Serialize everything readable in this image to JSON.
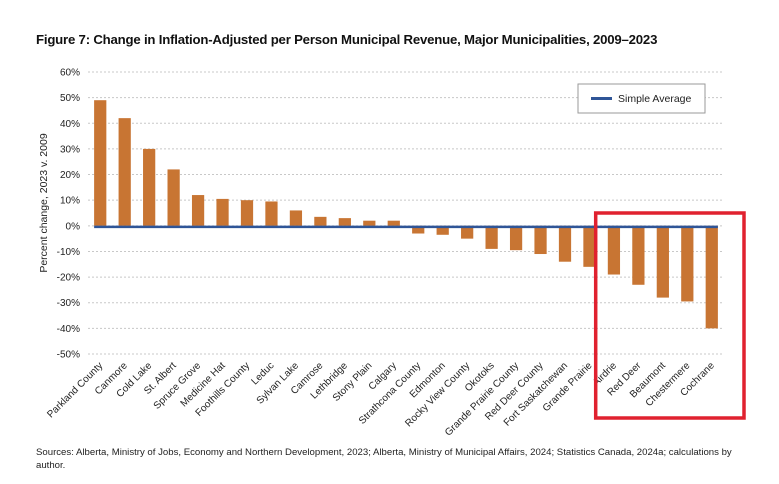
{
  "title": "Figure 7: Change in Inflation-Adjusted per Person Municipal Revenue, Major Municipalities, 2009–2023",
  "source": "Sources: Alberta, Ministry of Jobs, Economy and Northern Development, 2023; Alberta, Ministry of Municipal Affairs, 2024; Statistics Canada, 2024a; calculations by author.",
  "colors": {
    "bar": "#c87533",
    "average_line": "#2f5597",
    "highlight": "#e0212f",
    "grid": "#c8c8c8"
  },
  "chart_data": {
    "type": "bar",
    "title": "Figure 7: Change in Inflation-Adjusted per Person Municipal Revenue, Major Municipalities, 2009–2023",
    "xlabel": "",
    "ylabel": "Percent change, 2023 v. 2009",
    "ylim": [
      -50,
      60
    ],
    "yticks": [
      60,
      50,
      40,
      30,
      20,
      10,
      0,
      -10,
      -20,
      -30,
      -40,
      -50
    ],
    "ytick_labels": [
      "60%",
      "50%",
      "40%",
      "30%",
      "20%",
      "10%",
      "0%",
      "-10%",
      "-20%",
      "-30%",
      "-40%",
      "-50%"
    ],
    "grid": true,
    "categories": [
      "Parkland County",
      "Canmore",
      "Cold Lake",
      "St. Albert",
      "Spruce Grove",
      "Medicine Hat",
      "Foothills County",
      "Leduc",
      "Sylvan Lake",
      "Camrose",
      "Lethbridge",
      "Stony Plain",
      "Calgary",
      "Strathcona County",
      "Edmonton",
      "Rocky View County",
      "Okotoks",
      "Grande Prairie County",
      "Red Deer County",
      "Fort Saskatchewan",
      "Grande Prairie",
      "Airdrie",
      "Red Deer",
      "Beaumont",
      "Chestermere",
      "Cochrane"
    ],
    "series": [
      {
        "name": "Percent change",
        "values": [
          49,
          42,
          30,
          22,
          12,
          10.5,
          10,
          9.5,
          6,
          3.5,
          3,
          2,
          2,
          -3,
          -3.5,
          -5,
          -9,
          -9.5,
          -11,
          -14,
          -16,
          -19,
          -23,
          -28,
          -29.5,
          -40
        ]
      }
    ],
    "average": {
      "name": "Simple Average",
      "value": -0.4
    },
    "legend": {
      "entries": [
        "Simple Average"
      ],
      "placement": "top-right"
    },
    "highlighted_categories": [
      "Airdrie",
      "Red Deer",
      "Beaumont",
      "Chestermere",
      "Cochrane"
    ]
  }
}
